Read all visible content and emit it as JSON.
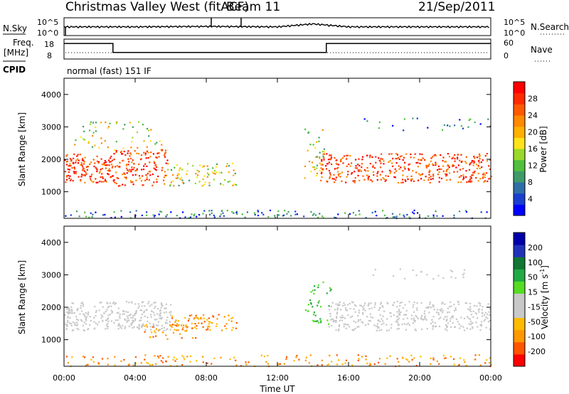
{
  "header": {
    "station": "Christmas Valley West (fitACF)",
    "beam": "Beam 11",
    "date": "21/Sep/2011"
  },
  "side_labels": {
    "nsky": "N.Sky",
    "freq_line1": "Freq.",
    "freq_line2": "[MHz]",
    "cpid": "CPID",
    "nsearch": "N.Search",
    "nave": "Nave"
  },
  "mode": "normal (fast) 151 IF",
  "colors": {
    "scale_ticks_power": [
      "#0000ff",
      "#1a3fd0",
      "#2f6fa8",
      "#3f9c6a",
      "#52c03e",
      "#9ad82a",
      "#ffe31a",
      "#ffb000",
      "#ff8a00",
      "#ff5a00",
      "#ff2a00",
      "#ff0000"
    ],
    "scale_ticks_velocity": [
      "#ff0000",
      "#ff5500",
      "#ff9900",
      "#ffbb00",
      "#c8c8c8",
      "#c8c8c8",
      "#55dd22",
      "#22aa44",
      "#117733",
      "#2233bb",
      "#0000aa"
    ],
    "ground_scatter": "#c8c8c8"
  },
  "chart_data": [
    {
      "type": "line",
      "name": "noise-panel",
      "y_ticks_left": [
        "10^5",
        "10^0"
      ],
      "y_ticks_right": [
        "10^5",
        "10^0"
      ],
      "series": [
        {
          "name": "N.Sky",
          "x": [
            "00:00",
            "04:00",
            "08:00",
            "12:00",
            "14:00",
            "16:00",
            "20:00",
            "00:00"
          ],
          "values": [
            300.0,
            300.0,
            400.0,
            300.0,
            2000.0,
            300.0,
            300.0,
            300.0
          ]
        }
      ]
    },
    {
      "type": "line",
      "name": "frequency-panel",
      "y_ticks_left": [
        "18",
        "8"
      ],
      "y_ticks_right": [
        "60",
        "0"
      ],
      "series": [
        {
          "name": "Freq",
          "x": [
            "00:00",
            "02:45",
            "02:45",
            "14:45",
            "14:45",
            "24:00"
          ],
          "values": [
            17,
            17,
            11,
            11,
            17,
            17
          ]
        }
      ]
    },
    {
      "type": "heatmap",
      "name": "power-panel",
      "ylabel": "Slant Range [km]",
      "ylim": [
        180,
        4500
      ],
      "y_ticks": [
        1000,
        2000,
        3000,
        4000
      ],
      "colorbar_label": "Power [dB]",
      "colorbar_ticks": [
        4,
        8,
        12,
        16,
        20,
        24,
        28
      ],
      "colorbar_range": [
        0,
        30
      ]
    },
    {
      "type": "heatmap",
      "name": "velocity-panel",
      "ylabel": "Slant Range [km]",
      "ylim": [
        180,
        4500
      ],
      "y_ticks": [
        1000,
        2000,
        3000,
        4000
      ],
      "colorbar_label": "Velocity [m s-1]",
      "colorbar_ticks": [
        "-200",
        "-100",
        "-50",
        "-15",
        "15",
        "50",
        "100",
        "200"
      ],
      "xlabel": "Time UT",
      "x_ticks": [
        "00:00",
        "04:00",
        "08:00",
        "12:00",
        "16:00",
        "20:00",
        "00:00"
      ]
    }
  ]
}
